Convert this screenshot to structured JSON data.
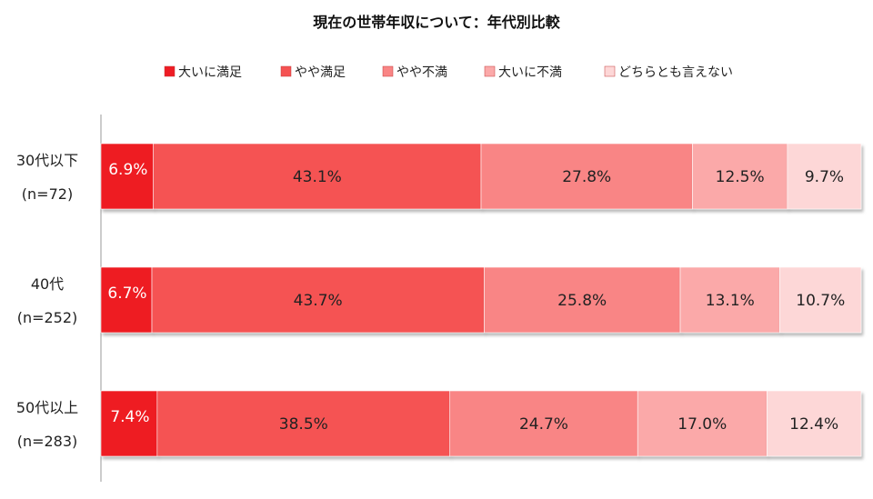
{
  "chart_data": {
    "type": "bar",
    "orientation": "horizontal",
    "stacked": "percent",
    "title": "現在の世帯年収について：年代別比較",
    "legend_position": "top",
    "categories": [
      {
        "name": "30代以下",
        "n": "(n=72)"
      },
      {
        "name": "40代",
        "n": "(n=252)"
      },
      {
        "name": "50代以上",
        "n": "(n=283)"
      }
    ],
    "series": [
      {
        "name": "大いに満足",
        "color": "#ee1c24",
        "text_color": "#ffffff",
        "values": [
          6.9,
          6.7,
          7.4
        ]
      },
      {
        "name": "やや満足",
        "color": "#f55252",
        "text_color": "#222222",
        "values": [
          43.1,
          43.7,
          38.5
        ]
      },
      {
        "name": "やや不満",
        "color": "#f98585",
        "text_color": "#222222",
        "values": [
          27.8,
          25.8,
          24.7
        ]
      },
      {
        "name": "大いに不満",
        "color": "#fba9a9",
        "text_color": "#222222",
        "values": [
          12.5,
          13.1,
          17.0
        ]
      },
      {
        "name": "どちらとも言えない",
        "color": "#fdd7d7",
        "text_color": "#222222",
        "values": [
          9.7,
          10.7,
          12.4
        ]
      }
    ],
    "value_suffix": "%"
  }
}
